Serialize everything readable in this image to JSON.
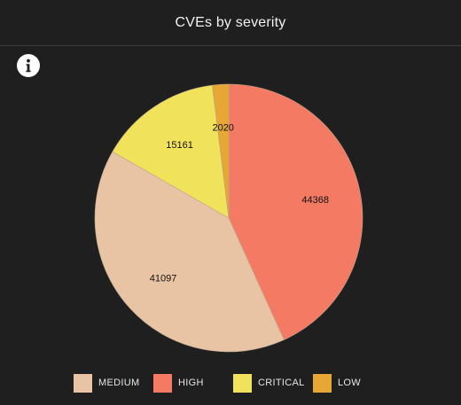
{
  "header": {
    "title": "CVEs by severity"
  },
  "info": {
    "icon": "info-icon"
  },
  "chart_data": {
    "type": "pie",
    "title": "CVEs by severity",
    "start_angle_deg": 0,
    "direction": "clockwise",
    "slices": [
      {
        "label": "HIGH",
        "value": 44368,
        "color": "#f47a63"
      },
      {
        "label": "MEDIUM",
        "value": 41097,
        "color": "#e8c4a5"
      },
      {
        "label": "CRITICAL",
        "value": 15161,
        "color": "#f1e25c"
      },
      {
        "label": "LOW",
        "value": 2020,
        "color": "#e6a734"
      }
    ],
    "legend": {
      "position": "bottom",
      "order": [
        "MEDIUM",
        "HIGH",
        "CRITICAL",
        "LOW"
      ]
    }
  },
  "legend": {
    "items": [
      {
        "label": "MEDIUM",
        "color": "#e8c4a5"
      },
      {
        "label": "HIGH",
        "color": "#f47a63"
      },
      {
        "label": "CRITICAL",
        "color": "#f1e25c"
      },
      {
        "label": "LOW",
        "color": "#e6a734"
      }
    ]
  }
}
